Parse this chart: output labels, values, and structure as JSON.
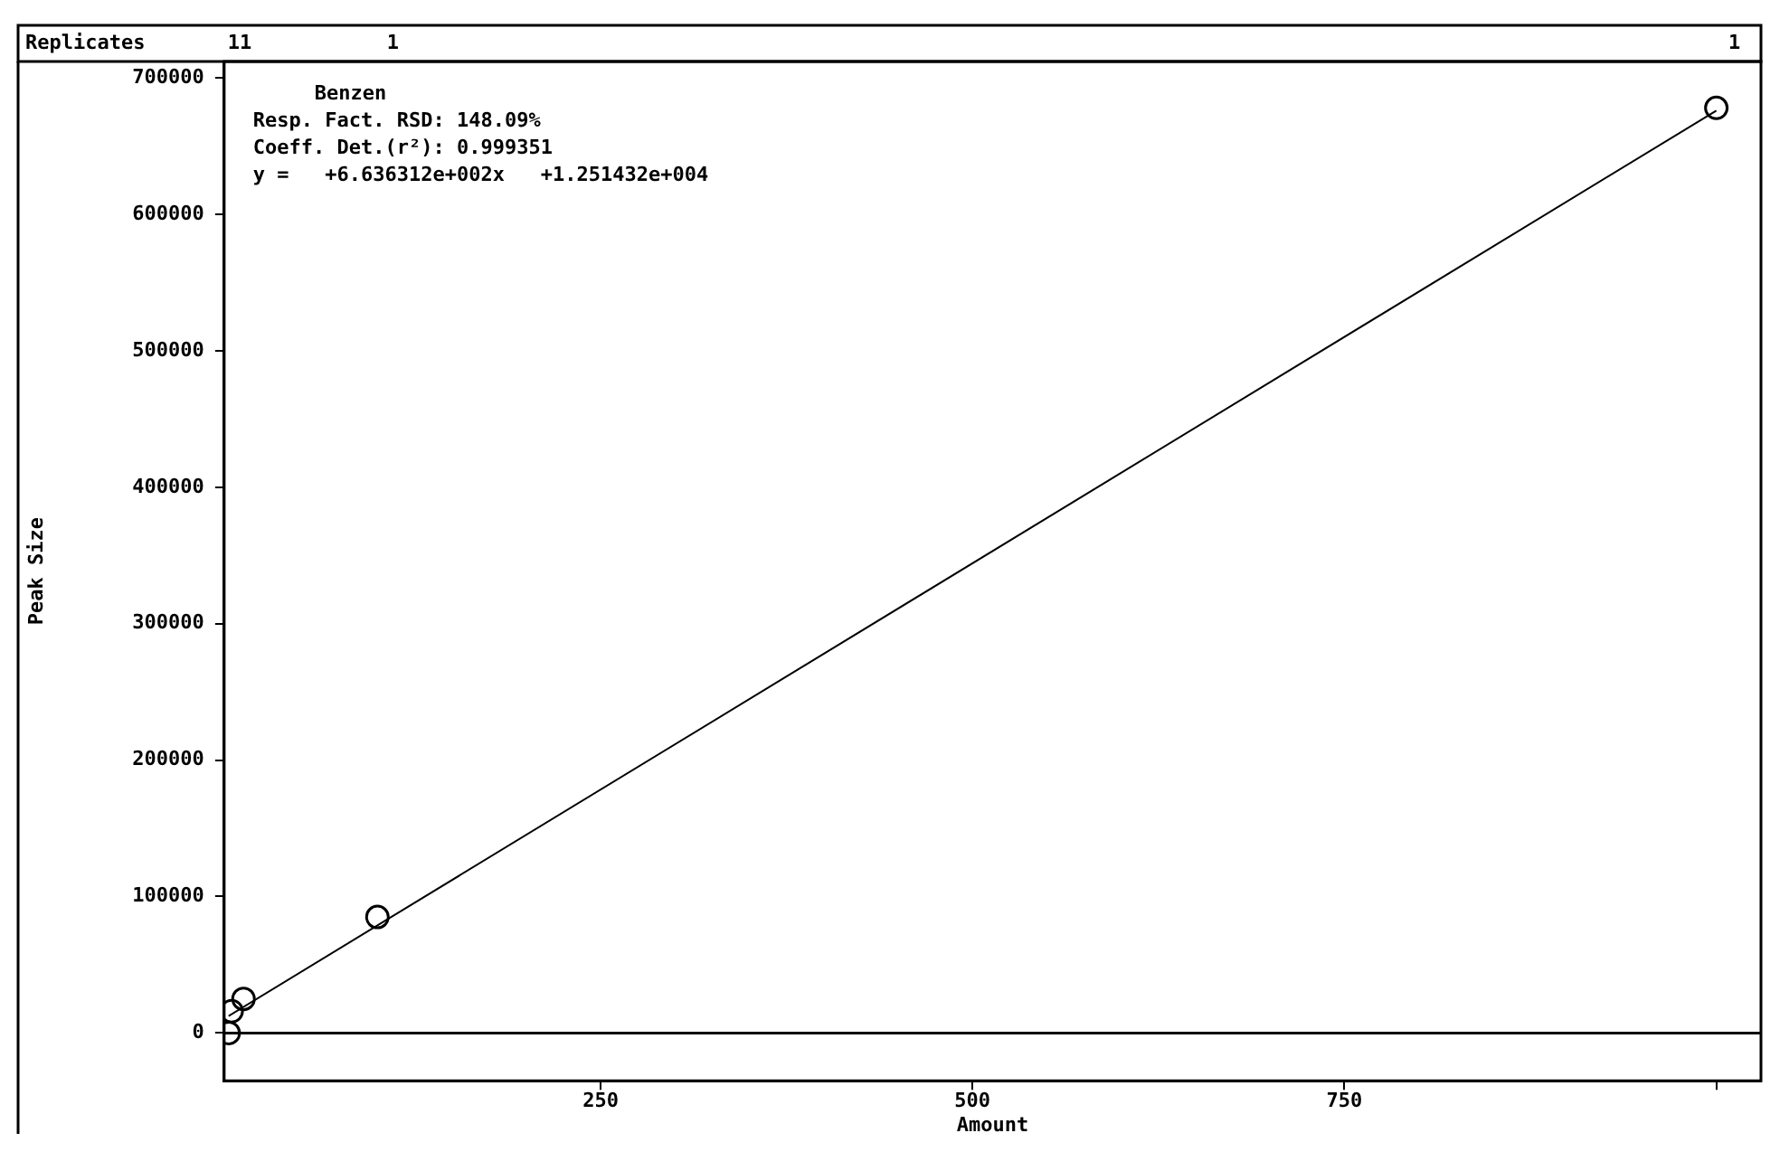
{
  "chart_data": {
    "type": "scatter",
    "xlabel": "Amount",
    "ylabel": "Peak Size",
    "series": [
      {
        "color": "#000000",
        "marker": "circle",
        "x": [
          0,
          2,
          10,
          100,
          1000
        ],
        "values": [
          0,
          16000,
          25000,
          85000,
          678000
        ]
      },
      {
        "type": "line",
        "color": "#000000",
        "x": [
          0,
          1000
        ],
        "values": [
          12500,
          676000
        ]
      }
    ],
    "xlim": [
      -3,
      1030
    ],
    "ylim": [
      -35000,
      712000
    ],
    "xticks": [
      250,
      500,
      750,
      {
        "value": 1000,
        "label": null
      }
    ],
    "yticks": [
      0,
      100000,
      200000,
      300000,
      400000,
      500000,
      600000,
      700000
    ],
    "ref_lines": [
      {
        "axis": "y",
        "value": 0
      }
    ],
    "annotations": [
      "Replicates",
      "11",
      "1",
      "1",
      "Benzen",
      "Resp. Fact. RSD: 148.09%",
      "Coeff. Det.(r²): 0.999351",
      "y =   +6.636312e+002x   +1.251432e+004"
    ],
    "grid": false,
    "legend": false,
    "line_style": "solid"
  }
}
